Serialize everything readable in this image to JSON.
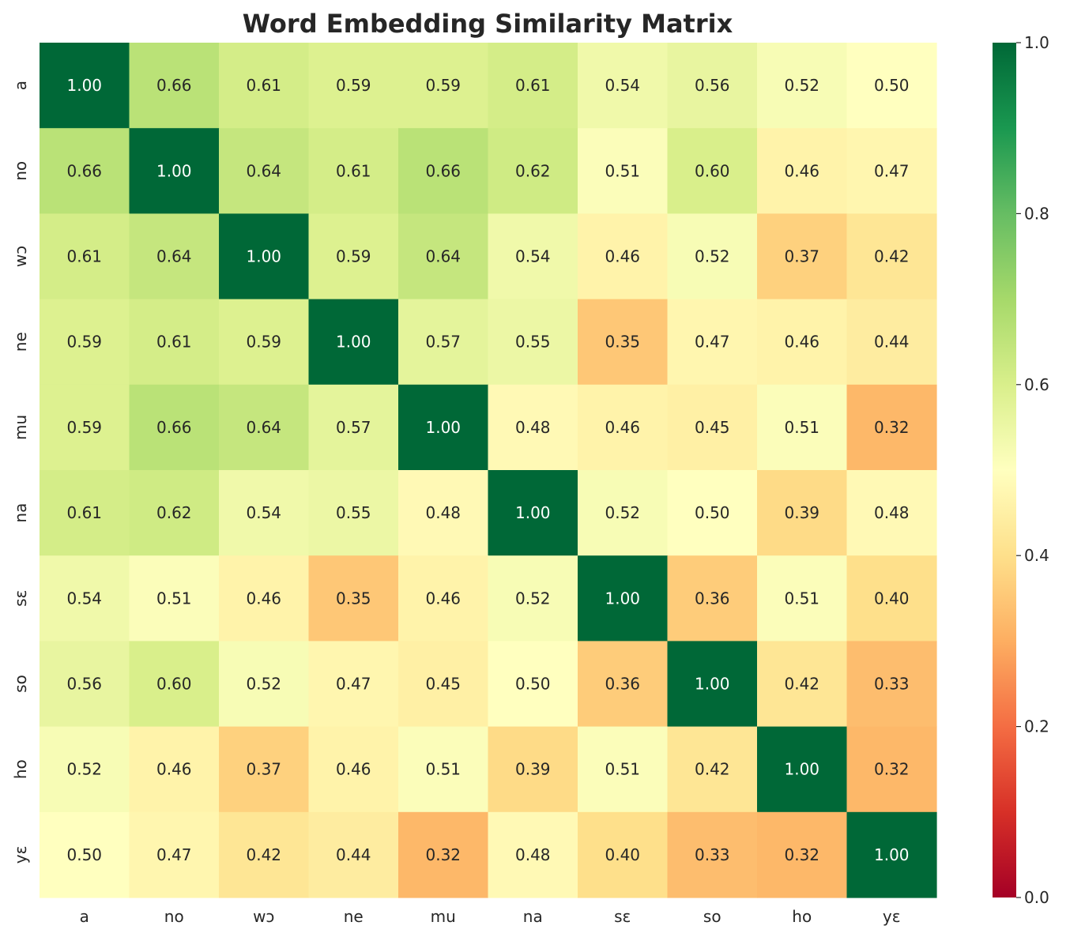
{
  "chart_data": {
    "type": "heatmap",
    "title": "Word Embedding Similarity Matrix",
    "xlabel": "",
    "ylabel": "",
    "x_categories": [
      "a",
      "no",
      "wɔ",
      "ne",
      "mu",
      "na",
      "sɛ",
      "so",
      "ho",
      "yɛ"
    ],
    "y_categories": [
      "a",
      "no",
      "wɔ",
      "ne",
      "mu",
      "na",
      "sɛ",
      "so",
      "ho",
      "yɛ"
    ],
    "values": [
      [
        1.0,
        0.66,
        0.61,
        0.59,
        0.59,
        0.61,
        0.54,
        0.56,
        0.52,
        0.5
      ],
      [
        0.66,
        1.0,
        0.64,
        0.61,
        0.66,
        0.62,
        0.51,
        0.6,
        0.46,
        0.47
      ],
      [
        0.61,
        0.64,
        1.0,
        0.59,
        0.64,
        0.54,
        0.46,
        0.52,
        0.37,
        0.42
      ],
      [
        0.59,
        0.61,
        0.59,
        1.0,
        0.57,
        0.55,
        0.35,
        0.47,
        0.46,
        0.44
      ],
      [
        0.59,
        0.66,
        0.64,
        0.57,
        1.0,
        0.48,
        0.46,
        0.45,
        0.51,
        0.32
      ],
      [
        0.61,
        0.62,
        0.54,
        0.55,
        0.48,
        1.0,
        0.52,
        0.5,
        0.39,
        0.48
      ],
      [
        0.54,
        0.51,
        0.46,
        0.35,
        0.46,
        0.52,
        1.0,
        0.36,
        0.51,
        0.4
      ],
      [
        0.56,
        0.6,
        0.52,
        0.47,
        0.45,
        0.5,
        0.36,
        1.0,
        0.42,
        0.33
      ],
      [
        0.52,
        0.46,
        0.37,
        0.46,
        0.51,
        0.39,
        0.51,
        0.42,
        1.0,
        0.32
      ],
      [
        0.5,
        0.47,
        0.42,
        0.44,
        0.32,
        0.48,
        0.4,
        0.33,
        0.32,
        1.0
      ]
    ],
    "value_format": "0.00",
    "colormap": "RdYlGn",
    "color_range": [
      0.0,
      1.0
    ],
    "colorbar_ticks": [
      "0.0",
      "0.2",
      "0.4",
      "0.6",
      "0.8",
      "1.0"
    ],
    "grid": false,
    "legend": "colorbar-right"
  }
}
